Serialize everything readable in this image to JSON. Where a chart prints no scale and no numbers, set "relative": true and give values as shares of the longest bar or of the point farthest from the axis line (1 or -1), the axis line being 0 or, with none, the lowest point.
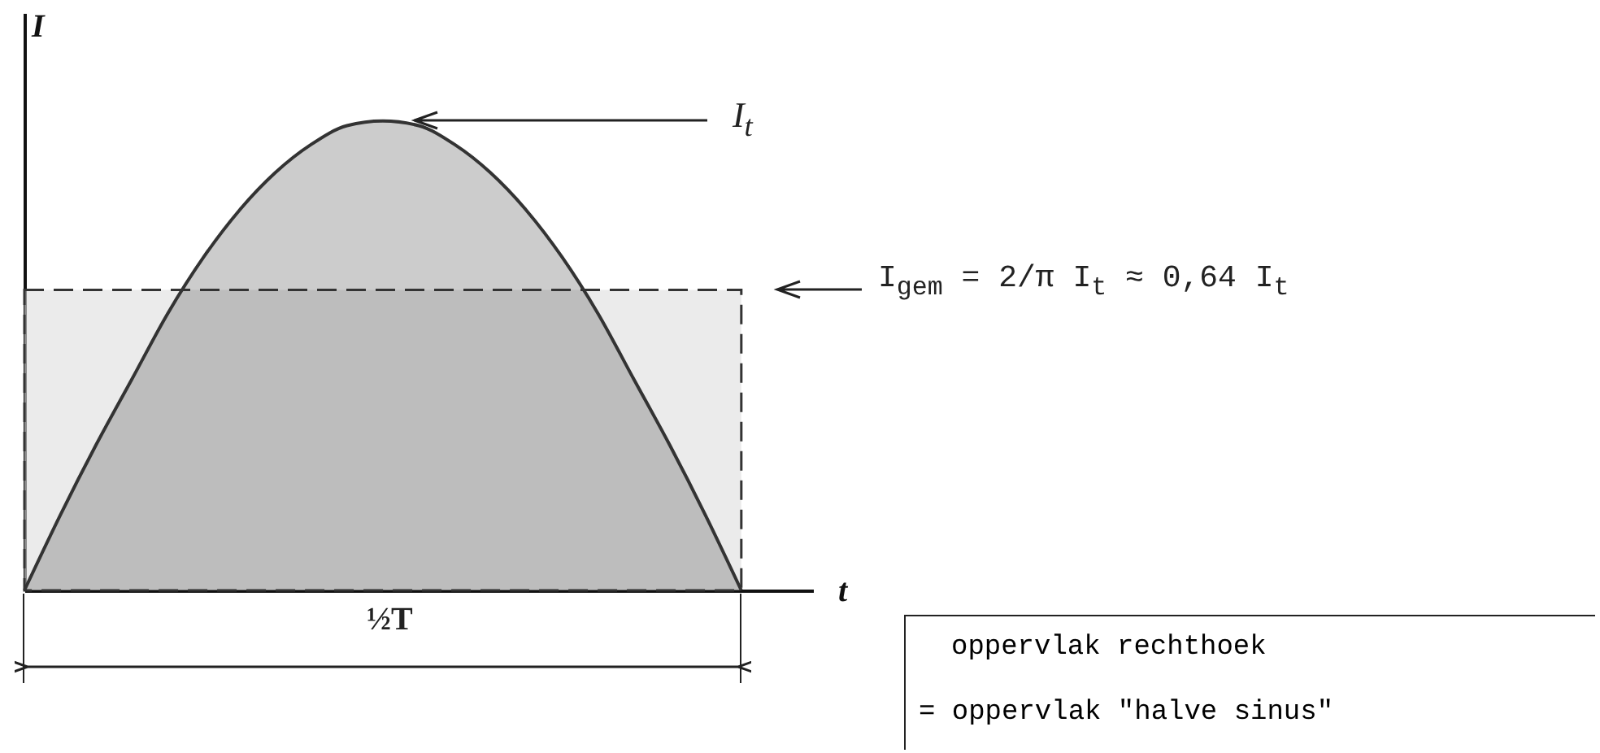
{
  "chart_data": {
    "type": "area",
    "relative": true,
    "xlabel": "t",
    "ylabel": "I",
    "categories": [
      null,
      null,
      null,
      null,
      null,
      null,
      null,
      null,
      null,
      null,
      null,
      null,
      null,
      null,
      null,
      null,
      null,
      null,
      null,
      null,
      null
    ],
    "series": [
      {
        "color": "#333333",
        "values": [
          0,
          0.16,
          0.31,
          0.45,
          0.59,
          0.71,
          0.81,
          0.89,
          0.95,
          0.99,
          1,
          0.99,
          0.95,
          0.89,
          0.81,
          0.71,
          0.59,
          0.45,
          0.31,
          0.16,
          0
        ]
      }
    ],
    "bands": [
      {
        "axis": "y",
        "from": 0,
        "to": 0.64,
        "color": "#dddddd",
        "label": "I$_{gem}$ = 2/π I$_{t}$ ≈ 0,64 I$_{t}$"
      }
    ],
    "annotations": [
      "I$_{t}$",
      "½T",
      "oppervlak rechthoek",
      "= oppervlak \"halve sinus\""
    ],
    "grid": false
  }
}
